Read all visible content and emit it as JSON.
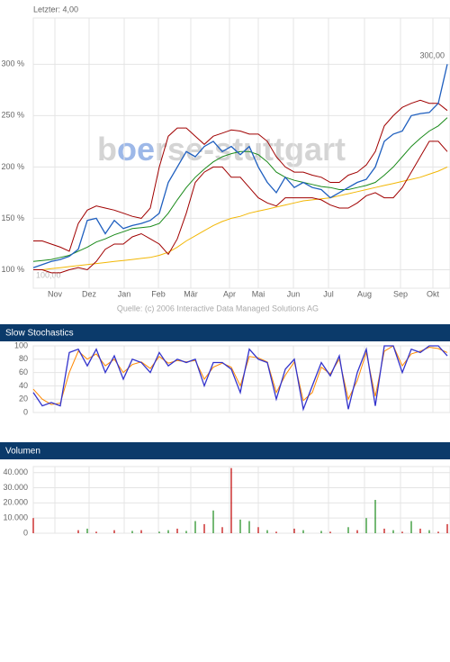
{
  "chart_data": [
    {
      "type": "line",
      "title": "Letzter: 4,00",
      "annotations": {
        "last": "300,00",
        "start": "100,00",
        "source": "Quelle: (c) 2006 Interactive Data Managed Solutions AG",
        "watermark_a": "b",
        "watermark_b": "oe",
        "watermark_c": "rse-stuttgart"
      },
      "x": [
        0,
        1,
        2,
        3,
        4,
        5,
        6,
        7,
        8,
        9,
        10,
        11,
        12,
        13,
        14,
        15,
        16,
        17,
        18,
        19,
        20,
        21,
        22,
        23,
        24,
        25,
        26,
        27,
        28,
        29,
        30,
        31,
        32,
        33,
        34,
        35,
        36,
        37,
        38,
        39,
        40,
        41,
        42,
        43,
        44,
        45,
        46
      ],
      "xlim": [
        0,
        46
      ],
      "xticks": [
        {
          "value": 2.4,
          "label": "Nov"
        },
        {
          "value": 6.2,
          "label": "Dez"
        },
        {
          "value": 10.1,
          "label": "Jan"
        },
        {
          "value": 13.9,
          "label": "Feb"
        },
        {
          "value": 17.5,
          "label": "Mär"
        },
        {
          "value": 21.8,
          "label": "Apr"
        },
        {
          "value": 25,
          "label": "Mai"
        },
        {
          "value": 28.9,
          "label": "Jun"
        },
        {
          "value": 32.8,
          "label": "Jul"
        },
        {
          "value": 36.8,
          "label": "Aug"
        },
        {
          "value": 40.8,
          "label": "Sep"
        },
        {
          "value": 44.4,
          "label": "Okt"
        }
      ],
      "ylim": [
        82,
        345
      ],
      "yticks": [
        {
          "value": 100,
          "label": "100 %"
        },
        {
          "value": 150,
          "label": "150 %"
        },
        {
          "value": 200,
          "label": "200 %"
        },
        {
          "value": 250,
          "label": "250 %"
        },
        {
          "value": 300,
          "label": "300 %"
        }
      ],
      "grid": true,
      "series": [
        {
          "color": "#f2b705",
          "values": [
            100,
            100,
            101,
            102,
            103,
            104,
            105,
            106,
            107,
            108,
            109,
            110,
            111,
            112,
            114,
            117,
            122,
            128,
            133,
            138,
            143,
            147,
            150,
            152,
            155,
            157,
            159,
            161,
            163,
            165,
            167,
            168,
            169,
            170,
            172,
            174,
            176,
            178,
            180,
            182,
            184,
            186,
            188,
            190,
            193,
            196,
            200
          ]
        },
        {
          "color": "#1a8a1a",
          "values": [
            108,
            109,
            110,
            112,
            114,
            118,
            122,
            127,
            130,
            134,
            137,
            140,
            141,
            142,
            145,
            155,
            168,
            180,
            190,
            198,
            205,
            210,
            213,
            215,
            215,
            212,
            205,
            195,
            190,
            187,
            185,
            183,
            181,
            180,
            178,
            178,
            180,
            182,
            185,
            192,
            200,
            210,
            220,
            228,
            235,
            240,
            248
          ]
        },
        {
          "color": "#a00000",
          "values": [
            128,
            128,
            125,
            122,
            118,
            145,
            158,
            162,
            160,
            158,
            155,
            152,
            150,
            160,
            200,
            230,
            238,
            238,
            230,
            222,
            230,
            233,
            236,
            235,
            232,
            232,
            225,
            210,
            200,
            195,
            195,
            192,
            190,
            185,
            185,
            192,
            195,
            202,
            215,
            240,
            250,
            258,
            262,
            265,
            262,
            262,
            255
          ]
        },
        {
          "color": "#a00000",
          "values": [
            100,
            100,
            97,
            97,
            100,
            102,
            100,
            108,
            120,
            125,
            125,
            132,
            135,
            130,
            125,
            115,
            130,
            155,
            185,
            195,
            200,
            200,
            190,
            190,
            180,
            170,
            165,
            162,
            170,
            170,
            170,
            170,
            168,
            163,
            160,
            160,
            165,
            172,
            175,
            170,
            170,
            180,
            195,
            210,
            225,
            225,
            215
          ]
        },
        {
          "color": "#1f5fbf",
          "values": [
            102,
            105,
            108,
            110,
            113,
            120,
            148,
            150,
            135,
            148,
            140,
            143,
            145,
            148,
            155,
            185,
            200,
            215,
            210,
            220,
            225,
            215,
            220,
            212,
            220,
            200,
            185,
            175,
            190,
            180,
            185,
            180,
            178,
            170,
            175,
            180,
            185,
            188,
            200,
            225,
            232,
            235,
            250,
            252,
            253,
            262,
            300
          ]
        }
      ]
    },
    {
      "type": "line",
      "title": "Slow Stochastics",
      "x": [
        0,
        1,
        2,
        3,
        4,
        5,
        6,
        7,
        8,
        9,
        10,
        11,
        12,
        13,
        14,
        15,
        16,
        17,
        18,
        19,
        20,
        21,
        22,
        23,
        24,
        25,
        26,
        27,
        28,
        29,
        30,
        31,
        32,
        33,
        34,
        35,
        36,
        37,
        38,
        39,
        40,
        41,
        42,
        43,
        44,
        45,
        46
      ],
      "xlim": [
        0,
        46
      ],
      "ylim": [
        0,
        100
      ],
      "yticks": [
        0,
        20,
        40,
        60,
        80,
        100
      ],
      "grid": true,
      "series": [
        {
          "color": "#ff8800",
          "values": [
            35,
            20,
            12,
            14,
            60,
            92,
            80,
            88,
            70,
            80,
            60,
            72,
            76,
            66,
            84,
            74,
            78,
            76,
            78,
            50,
            68,
            74,
            68,
            40,
            84,
            82,
            76,
            30,
            56,
            76,
            18,
            30,
            68,
            58,
            80,
            20,
            48,
            90,
            24,
            92,
            100,
            70,
            88,
            92,
            98,
            96,
            90
          ]
        },
        {
          "color": "#3333cc",
          "values": [
            30,
            10,
            15,
            10,
            90,
            95,
            70,
            95,
            60,
            85,
            50,
            80,
            75,
            60,
            90,
            70,
            80,
            75,
            80,
            40,
            75,
            75,
            65,
            30,
            95,
            80,
            75,
            20,
            65,
            80,
            5,
            40,
            75,
            55,
            85,
            5,
            60,
            95,
            10,
            100,
            100,
            60,
            95,
            90,
            100,
            100,
            85
          ]
        }
      ]
    },
    {
      "type": "bar",
      "title": "Volumen",
      "x": [
        0,
        1,
        2,
        3,
        4,
        5,
        6,
        7,
        8,
        9,
        10,
        11,
        12,
        13,
        14,
        15,
        16,
        17,
        18,
        19,
        20,
        21,
        22,
        23,
        24,
        25,
        26,
        27,
        28,
        29,
        30,
        31,
        32,
        33,
        34,
        35,
        36,
        37,
        38,
        39,
        40,
        41,
        42,
        43,
        44,
        45,
        46
      ],
      "xlim": [
        0,
        46
      ],
      "ylim": [
        0,
        44000
      ],
      "yticks": [
        0,
        {
          "value": 10000,
          "label": "10.000"
        },
        {
          "value": 20000,
          "label": "20.000"
        },
        {
          "value": 30000,
          "label": "30.000"
        },
        {
          "value": 40000,
          "label": "40.000"
        }
      ],
      "grid": true,
      "values": [
        10000,
        0,
        0,
        0,
        0,
        2000,
        3000,
        1000,
        0,
        2000,
        0,
        1500,
        2000,
        0,
        1000,
        2000,
        3000,
        1500,
        8000,
        6000,
        15000,
        4000,
        43000,
        9000,
        8000,
        4000,
        2000,
        1000,
        0,
        3000,
        2000,
        0,
        1500,
        1000,
        0,
        4000,
        2000,
        10000,
        22000,
        3000,
        2000,
        1000,
        8000,
        3000,
        2000,
        1000,
        6000
      ],
      "colors": [
        "#c00000",
        "#c00000",
        "#c00000",
        "#c00000",
        "#c00000",
        "#c00000",
        "#1a8a1a",
        "#c00000",
        "#c00000",
        "#c00000",
        "#c00000",
        "#1a8a1a",
        "#c00000",
        "#c00000",
        "#1a8a1a",
        "#1a8a1a",
        "#c00000",
        "#1a8a1a",
        "#1a8a1a",
        "#c00000",
        "#1a8a1a",
        "#c00000",
        "#c00000",
        "#1a8a1a",
        "#1a8a1a",
        "#c00000",
        "#1a8a1a",
        "#c00000",
        "#c00000",
        "#c00000",
        "#1a8a1a",
        "#c00000",
        "#1a8a1a",
        "#c00000",
        "#c00000",
        "#1a8a1a",
        "#c00000",
        "#1a8a1a",
        "#1a8a1a",
        "#c00000",
        "#1a8a1a",
        "#c00000",
        "#1a8a1a",
        "#c00000",
        "#1a8a1a",
        "#c00000",
        "#c00000"
      ]
    }
  ]
}
